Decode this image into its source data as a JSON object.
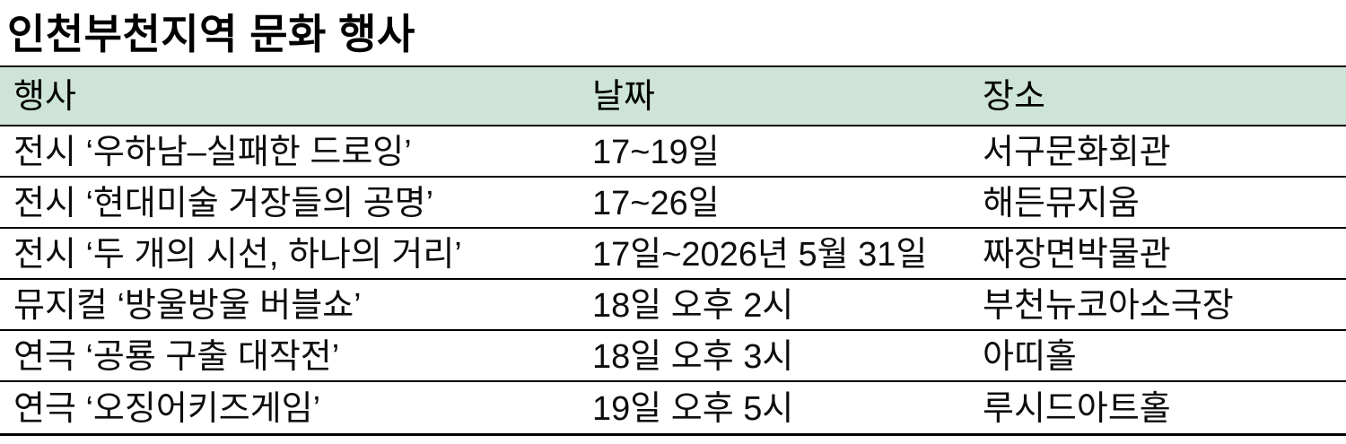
{
  "title": "인천부천지역 문화 행사",
  "table": {
    "header_bg": "#cee4d8",
    "columns": {
      "event": "행사",
      "date": "날짜",
      "place": "장소"
    },
    "rows": [
      {
        "event": "전시 ‘우하남–실패한 드로잉’",
        "date": "17~19일",
        "place": "서구문화회관"
      },
      {
        "event": "전시 ‘현대미술 거장들의 공명’",
        "date": "17~26일",
        "place": "해든뮤지움"
      },
      {
        "event": "전시 ‘두 개의 시선, 하나의 거리’",
        "date": "17일~2026년 5월 31일",
        "place": "짜장면박물관"
      },
      {
        "event": "뮤지컬 ‘방울방울 버블쇼’",
        "date": "18일 오후 2시",
        "place": "부천뉴코아소극장"
      },
      {
        "event": "연극 ‘공룡 구출 대작전’",
        "date": "18일 오후 3시",
        "place": "아띠홀"
      },
      {
        "event": "연극 ‘오징어키즈게임’",
        "date": "19일 오후 5시",
        "place": "루시드아트홀"
      }
    ]
  }
}
